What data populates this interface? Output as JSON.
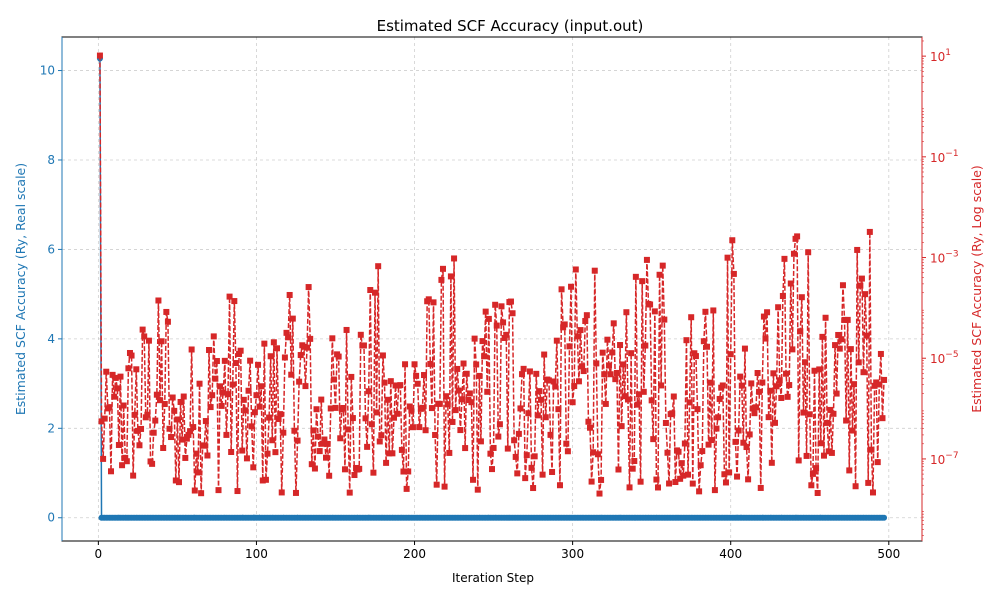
{
  "chart_data": {
    "type": "line",
    "title": "Estimated SCF Accuracy (input.out)",
    "xlabel": "Iteration Step",
    "ylabel_left": "Estimated SCF Accuracy (Ry, Real scale)",
    "ylabel_right": "Estimated SCF Accuracy (Ry, Log scale)",
    "xlim": [
      -23,
      521
    ],
    "ylim_left": [
      -0.52,
      10.75
    ],
    "ylim_right_log10": [
      -8.63,
      1.38
    ],
    "xticks": [
      0,
      100,
      200,
      300,
      400,
      500
    ],
    "yticks_left": [
      0,
      2,
      4,
      6,
      8,
      10
    ],
    "yticks_right": [
      {
        "value": 1e-07,
        "mant": "10",
        "exp": "−7"
      },
      {
        "value": 1e-05,
        "mant": "10",
        "exp": "−5"
      },
      {
        "value": 0.001,
        "mant": "10",
        "exp": "−3"
      },
      {
        "value": 0.1,
        "mant": "10",
        "exp": "−1"
      },
      {
        "value": 10,
        "mant": "10",
        "exp": "1"
      }
    ],
    "grid": true,
    "series": [
      {
        "axis": "left",
        "scale": "linear",
        "color": "#1f77b4",
        "marker": "circle",
        "n_points": 497,
        "x_start": 1,
        "first_value": 10.27,
        "other_values_approx": 0.0
      },
      {
        "axis": "right",
        "scale": "log",
        "color": "#d62728",
        "marker": "square",
        "linestyle": "dashed",
        "n_points": 497,
        "x_start": 1,
        "first_value": 10.27,
        "typical_range": [
          2e-08,
          0.04
        ]
      }
    ]
  },
  "colors": {
    "left_axis": "#1f77b4",
    "right_axis": "#d62728",
    "grid": "#b0b0b0",
    "axis": "#000000"
  }
}
